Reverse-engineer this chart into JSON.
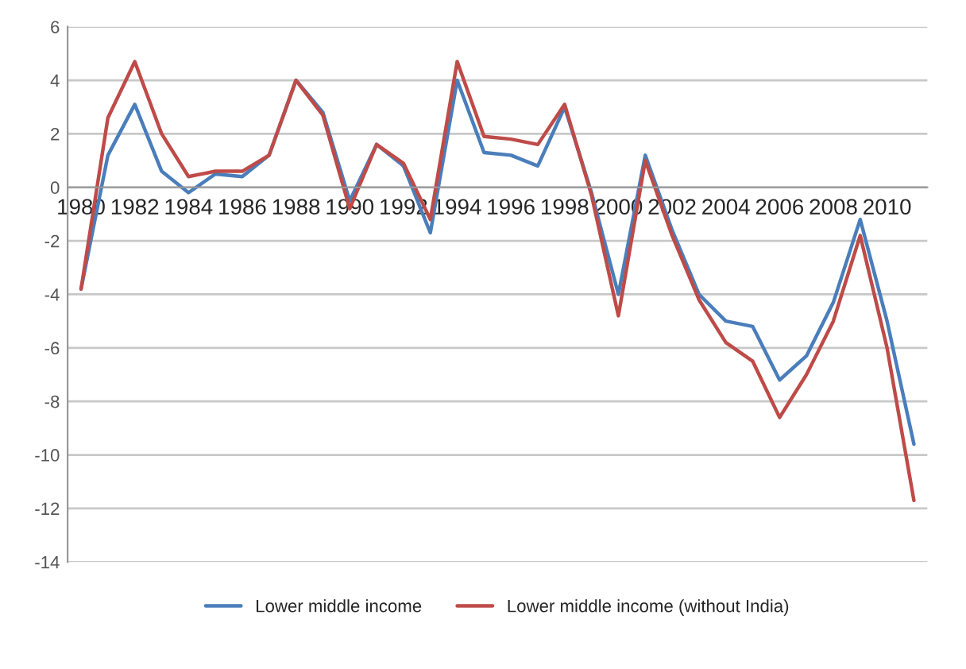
{
  "chart_data": {
    "type": "line",
    "x": [
      1980,
      1981,
      1982,
      1983,
      1984,
      1985,
      1986,
      1987,
      1988,
      1989,
      1990,
      1991,
      1992,
      1993,
      1994,
      1995,
      1996,
      1997,
      1998,
      1999,
      2000,
      2001,
      2002,
      2003,
      2004,
      2005,
      2006,
      2007,
      2008,
      2009,
      2010,
      2011
    ],
    "series": [
      {
        "name": "Lower middle income",
        "color": "#4a7ebb",
        "values": [
          -3.8,
          1.2,
          3.1,
          0.6,
          -0.2,
          0.5,
          0.4,
          1.2,
          4.0,
          2.8,
          -0.5,
          1.6,
          0.8,
          -1.7,
          4.0,
          1.3,
          1.2,
          0.8,
          3.0,
          -0.2,
          -4.0,
          1.2,
          -1.6,
          -4.0,
          -5.0,
          -5.2,
          -7.2,
          -6.3,
          -4.3,
          -1.2,
          -5.0,
          -9.6
        ]
      },
      {
        "name": "Lower middle income (without India)",
        "color": "#be4b48",
        "values": [
          -3.8,
          2.6,
          4.7,
          2.0,
          0.4,
          0.6,
          0.6,
          1.2,
          4.0,
          2.7,
          -0.8,
          1.6,
          0.9,
          -1.2,
          4.7,
          1.9,
          1.8,
          1.6,
          3.1,
          -0.3,
          -4.8,
          1.0,
          -1.8,
          -4.2,
          -5.8,
          -6.5,
          -8.6,
          -7.0,
          -5.0,
          -1.8,
          -6.0,
          -11.7
        ]
      }
    ],
    "xlim": [
      1979.5,
      2011.5
    ],
    "xticks": [
      1980,
      1982,
      1984,
      1986,
      1988,
      1990,
      1992,
      1994,
      1996,
      1998,
      2000,
      2002,
      2004,
      2006,
      2008,
      2010
    ],
    "ylim": [
      -14,
      6
    ],
    "yticks": [
      -14,
      -12,
      -10,
      -8,
      -6,
      -4,
      -2,
      0,
      2,
      4,
      6
    ],
    "grid": "y",
    "legend": "bottom",
    "marker": "none",
    "line_style": "solid"
  }
}
